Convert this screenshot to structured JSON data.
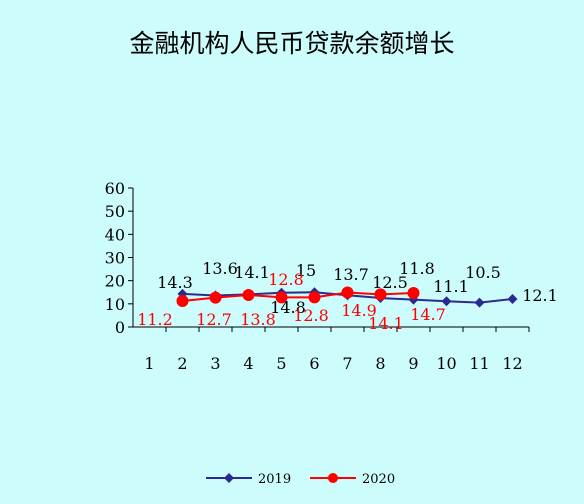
{
  "chart_data": {
    "type": "line",
    "title": "金融机构人民币贷款余额增长",
    "categories": [
      "1",
      "2",
      "3",
      "4",
      "5",
      "6",
      "7",
      "8",
      "9",
      "10",
      "11",
      "12"
    ],
    "y_ticks": [
      "0",
      "10",
      "20",
      "30",
      "40",
      "50",
      "60"
    ],
    "ylim": [
      0,
      60
    ],
    "grid": false,
    "legend": "bottom",
    "series": [
      {
        "name": "2019",
        "color": "#2b2b8f",
        "marker": "diamond",
        "values": [
          null,
          14.3,
          13.6,
          14.1,
          14.8,
          15,
          13.7,
          12.5,
          11.8,
          11.1,
          10.5,
          12.1
        ],
        "labels": [
          "",
          "14.3",
          "13.6",
          "14.1",
          "14.8",
          "15",
          "13.7",
          "12.5",
          "11.8",
          "11.1",
          "10.5",
          "12.1"
        ]
      },
      {
        "name": "2020",
        "color": "#ff0000",
        "marker": "circle",
        "values": [
          null,
          11.2,
          12.7,
          13.8,
          12.8,
          12.8,
          14.9,
          14.1,
          14.7,
          null,
          null,
          null
        ],
        "labels": [
          "",
          "11.2",
          "12.7",
          "13.8",
          "12.8",
          "12.8",
          "14.9",
          "14.1",
          "14.7",
          "",
          "",
          ""
        ]
      }
    ]
  }
}
